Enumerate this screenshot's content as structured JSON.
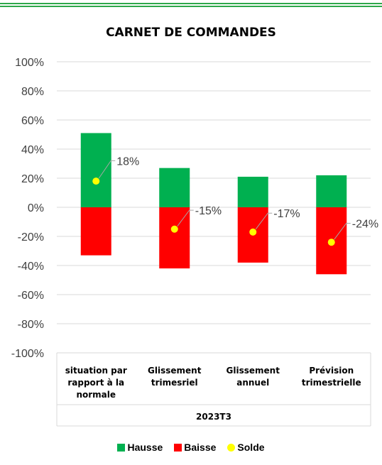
{
  "colors": {
    "hausse": "#00B050",
    "baisse": "#FF0000",
    "solde": "#FFFF00",
    "frame": "#2EA84A"
  },
  "chart_data": {
    "type": "bar",
    "title": "CARNET DE COMMANDES",
    "categories": [
      "situation par rapport à la normale",
      "Glissement trimesriel",
      "Glissement annuel",
      "Prévision trimestrielle"
    ],
    "category_lines": [
      [
        "situation par",
        "rapport à la",
        "normale"
      ],
      [
        "Glissement",
        "trimesriel"
      ],
      [
        "Glissement",
        "annuel"
      ],
      [
        "Prévision",
        "trimestrielle"
      ]
    ],
    "group_label": "2023T3",
    "series": [
      {
        "name": "Hausse",
        "values": [
          51,
          27,
          21,
          22
        ]
      },
      {
        "name": "Baisse",
        "values": [
          -33,
          -42,
          -38,
          -46
        ]
      },
      {
        "name": "Solde",
        "values": [
          18,
          -15,
          -17,
          -24
        ]
      }
    ],
    "data_labels": [
      "18%",
      "-15%",
      "-17%",
      "-24%"
    ],
    "ylim": [
      -100,
      100
    ],
    "yticks": [
      100,
      80,
      60,
      40,
      20,
      0,
      -20,
      -40,
      -60,
      -80,
      -100
    ],
    "ytick_labels": [
      "100%",
      "80%",
      "60%",
      "40%",
      "20%",
      "0%",
      "-20%",
      "-40%",
      "-60%",
      "-80%",
      "-100%"
    ],
    "grid": true,
    "legend_position": "bottom"
  }
}
